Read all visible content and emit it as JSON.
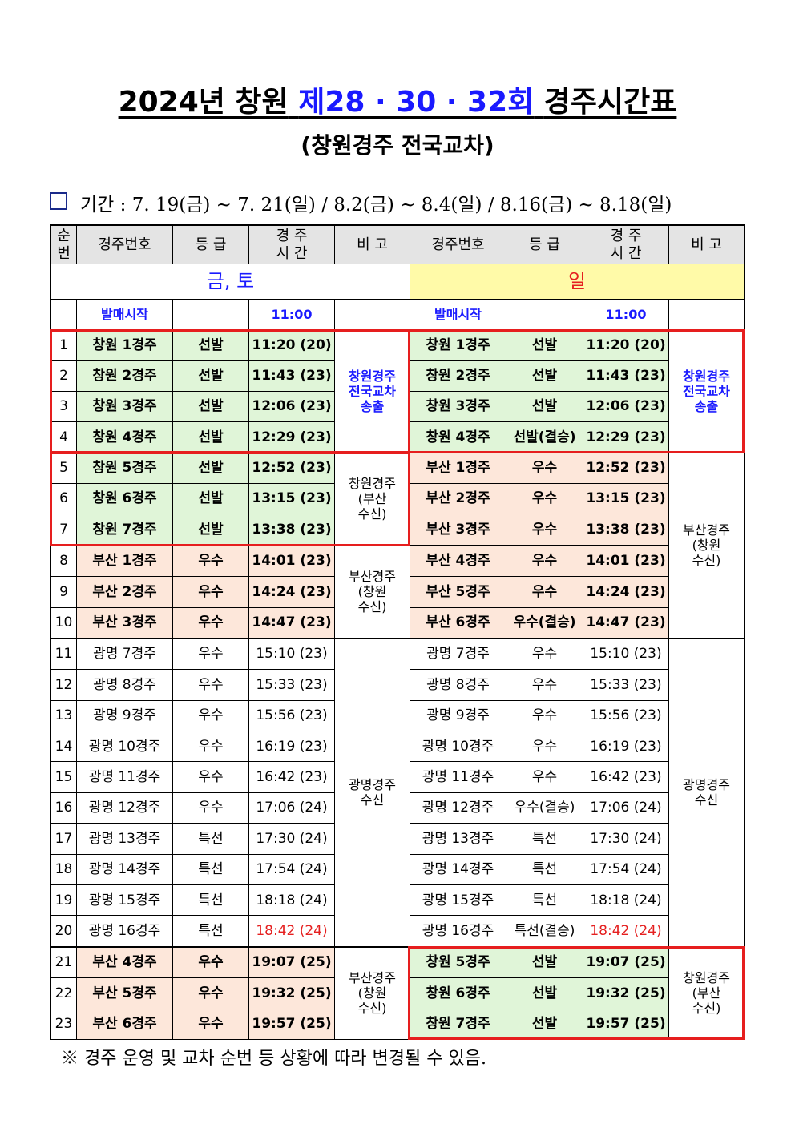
{
  "title": {
    "part1": "2024년 창원",
    "part2": "제28 · 30 · 32회",
    "part3": "경주시간표"
  },
  "subtitle": "(창원경주 전국교차)",
  "period": "기간 : 7. 19(금) ~ 7. 21(일) / 8.2(금) ~ 8.4(일) / 8.16(금) ~ 8.18(일)",
  "table": {
    "header": [
      "순\n번",
      "경주번호",
      "등 급",
      "경 주\n시 간",
      "비 고",
      "경주번호",
      "등 급",
      "경 주\n시 간",
      "비 고"
    ],
    "day_labels": [
      "금, 토",
      "일"
    ],
    "sale_row": [
      "발매시작",
      "11:00",
      "발매시작",
      "11:00"
    ],
    "rows": [
      [
        1,
        "창원 1경주",
        "선발",
        "11:20 (20)",
        "창원 1경주",
        "선발",
        "11:20 (20)"
      ],
      [
        2,
        "창원 2경주",
        "선발",
        "11:43 (23)",
        "창원 2경주",
        "선발",
        "11:43 (23)"
      ],
      [
        3,
        "창원 3경주",
        "선발",
        "12:06 (23)",
        "창원 3경주",
        "선발",
        "12:06 (23)"
      ],
      [
        4,
        "창원 4경주",
        "선발",
        "12:29 (23)",
        "창원 4경주",
        "선발(결승)",
        "12:29 (23)"
      ],
      [
        5,
        "창원 5경주",
        "선발",
        "12:52 (23)",
        "부산 1경주",
        "우수",
        "12:52 (23)"
      ],
      [
        6,
        "창원 6경주",
        "선발",
        "13:15 (23)",
        "부산 2경주",
        "우수",
        "13:15 (23)"
      ],
      [
        7,
        "창원 7경주",
        "선발",
        "13:38 (23)",
        "부산 3경주",
        "우수",
        "13:38 (23)"
      ],
      [
        8,
        "부산 1경주",
        "우수",
        "14:01 (23)",
        "부산 4경주",
        "우수",
        "14:01 (23)"
      ],
      [
        9,
        "부산 2경주",
        "우수",
        "14:24 (23)",
        "부산 5경주",
        "우수",
        "14:24 (23)"
      ],
      [
        10,
        "부산 3경주",
        "우수",
        "14:47 (23)",
        "부산 6경주",
        "우수(결승)",
        "14:47 (23)"
      ],
      [
        11,
        "광명 7경주",
        "우수",
        "15:10 (23)",
        "광명 7경주",
        "우수",
        "15:10 (23)"
      ],
      [
        12,
        "광명 8경주",
        "우수",
        "15:33 (23)",
        "광명 8경주",
        "우수",
        "15:33 (23)"
      ],
      [
        13,
        "광명 9경주",
        "우수",
        "15:56 (23)",
        "광명 9경주",
        "우수",
        "15:56 (23)"
      ],
      [
        14,
        "광명 10경주",
        "우수",
        "16:19 (23)",
        "광명 10경주",
        "우수",
        "16:19 (23)"
      ],
      [
        15,
        "광명 11경주",
        "우수",
        "16:42 (23)",
        "광명 11경주",
        "우수",
        "16:42 (23)"
      ],
      [
        16,
        "광명 12경주",
        "우수",
        "17:06 (24)",
        "광명 12경주",
        "우수(결승)",
        "17:06 (24)"
      ],
      [
        17,
        "광명 13경주",
        "특선",
        "17:30 (24)",
        "광명 13경주",
        "특선",
        "17:30 (24)"
      ],
      [
        18,
        "광명 14경주",
        "특선",
        "17:54 (24)",
        "광명 14경주",
        "특선",
        "17:54 (24)"
      ],
      [
        19,
        "광명 15경주",
        "특선",
        "18:18 (24)",
        "광명 15경주",
        "특선",
        "18:18 (24)"
      ],
      [
        20,
        "광명 16경주",
        "특선",
        "18:42 (24)",
        "광명 16경주",
        "특선(결승)",
        "18:42 (24)"
      ],
      [
        21,
        "부산 4경주",
        "우수",
        "19:07 (25)",
        "창원 5경주",
        "선발",
        "19:07 (25)"
      ],
      [
        22,
        "부산 5경주",
        "우수",
        "19:32 (25)",
        "창원 6경주",
        "선발",
        "19:32 (25)"
      ],
      [
        23,
        "부산 6경주",
        "우수",
        "19:57 (25)",
        "창원 7경주",
        "선발",
        "19:57 (25)"
      ]
    ],
    "notes_left": [
      "창원경주\n전국교차\n송출",
      "창원경주\n(부산\n수신)",
      "부산경주\n(창원\n수신)",
      "광명경주\n수신",
      "부산경주\n(창원\n수신)"
    ],
    "notes_right": [
      "창원경주\n전국교차\n송출",
      "부산경주\n(창원\n수신)",
      "광명경주\n수신",
      "창원경주\n(부산\n수신)"
    ]
  },
  "footnote": "※ 경주 운영 및 교차 순번 등 상황에 따라 변경될 수 있음."
}
